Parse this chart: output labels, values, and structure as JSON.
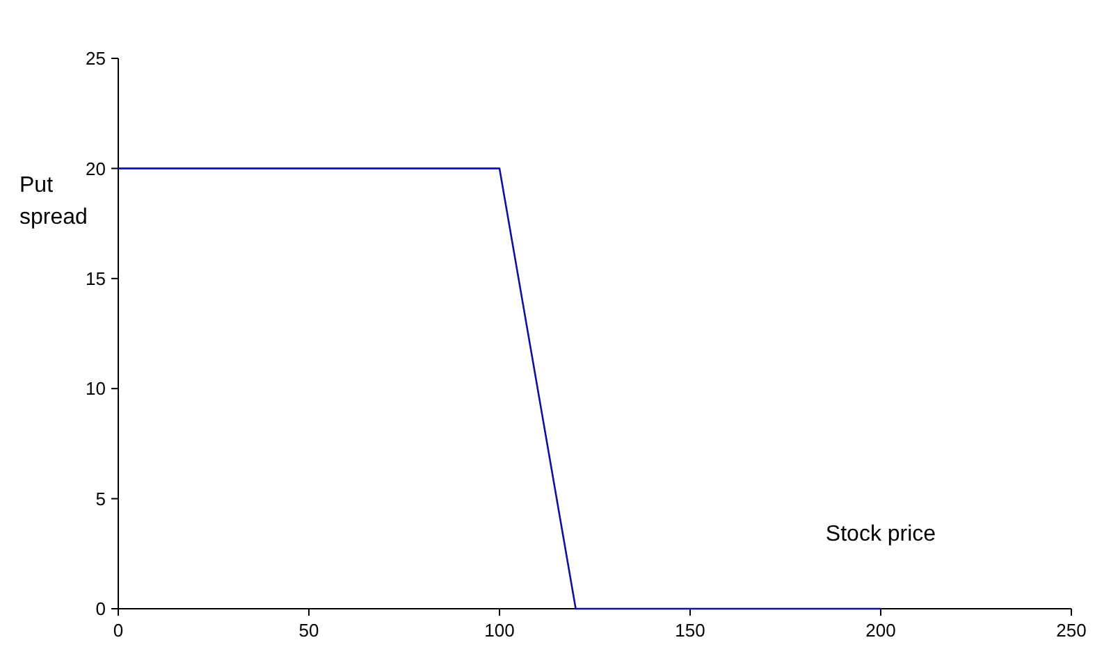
{
  "chart_data": {
    "type": "line",
    "xlabel": "Stock price",
    "ylabel": "Put spread",
    "x": [
      0,
      100,
      120,
      200
    ],
    "series": [
      {
        "color": "#1010a0",
        "values": [
          20,
          20,
          0,
          0
        ]
      }
    ],
    "xlim": [
      0,
      250
    ],
    "xticks": [
      0,
      50,
      100,
      150,
      200,
      250
    ],
    "ylim": [
      0,
      25
    ],
    "yticks": [
      0,
      5,
      10,
      15,
      20,
      25
    ],
    "grid": false,
    "marker": "none",
    "line_style": "solid"
  }
}
